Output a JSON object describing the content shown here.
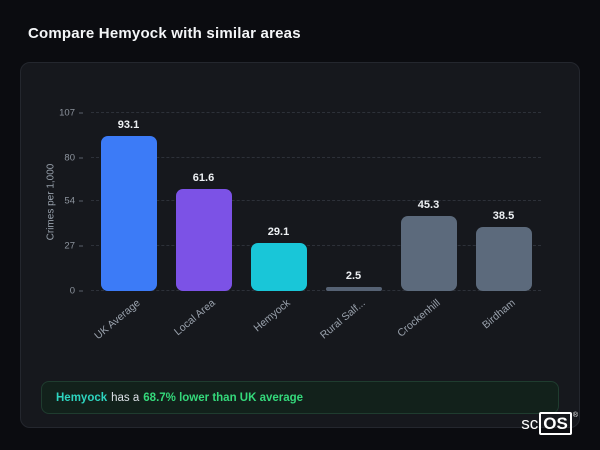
{
  "page": {
    "title": "Compare Hemyock with similar areas"
  },
  "chart_data": {
    "type": "bar",
    "title": "Compare Hemyock with similar areas",
    "categories": [
      "UK Average",
      "Local Area",
      "Hemyock",
      "Rural Salf...",
      "Crockenhill",
      "Birdham"
    ],
    "values": [
      93.1,
      61.6,
      29.1,
      2.5,
      45.3,
      38.5
    ],
    "bar_colors": [
      "#3c7bf7",
      "#7c52e6",
      "#19c6d8",
      "#566274",
      "#5c6a7c",
      "#5c6a7c"
    ],
    "xlabel": "",
    "ylabel": "Crimes per 1,000",
    "yticks": [
      0,
      27,
      54,
      80,
      107
    ],
    "ylim": [
      0,
      107
    ],
    "grid": "dashed-horizontal",
    "legend_position": "none"
  },
  "note": {
    "area": "Hemyock",
    "middle": "has a",
    "highlight": "68.7% lower than UK average"
  },
  "logo": {
    "prefix": "sc",
    "suffix": "OS",
    "reg": "®"
  },
  "colors": {
    "background": "#0b0c10",
    "card": "#16181d",
    "accent_blue": "#3c7bf7",
    "accent_purple": "#7c52e6",
    "accent_cyan": "#19c6d8",
    "note_green": "#34d97b",
    "note_teal": "#2dd4bf"
  }
}
